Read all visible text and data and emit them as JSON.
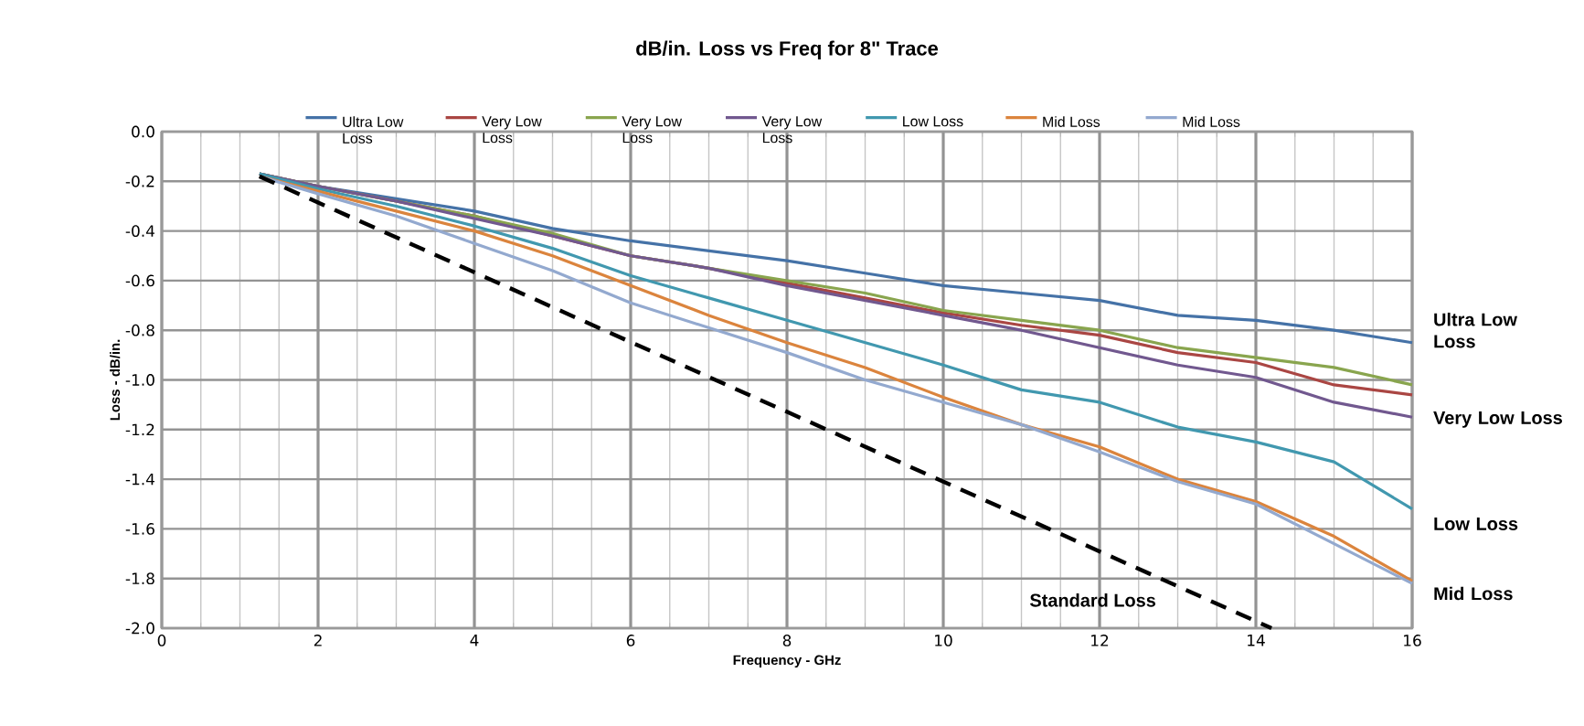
{
  "chart_data": {
    "type": "line",
    "title": "dB/in. Loss vs Freq for 8\" Trace",
    "xlabel": "Frequency - GHz",
    "ylabel": "Loss - dB/in.",
    "x": [
      1.25,
      2,
      3,
      4,
      5,
      6,
      7,
      8,
      9,
      10,
      11,
      12,
      13,
      14,
      15,
      16
    ],
    "series": [
      {
        "name": "Ultra  Low Loss",
        "color": "#4572a7",
        "values": [
          -0.17,
          -0.22,
          -0.27,
          -0.32,
          -0.39,
          -0.44,
          -0.48,
          -0.52,
          -0.57,
          -0.62,
          -0.65,
          -0.68,
          -0.74,
          -0.76,
          -0.8,
          -0.85
        ]
      },
      {
        "name": "Very Low Loss",
        "color": "#aa4643",
        "values": [
          -0.17,
          -0.22,
          -0.28,
          -0.34,
          -0.42,
          -0.5,
          -0.55,
          -0.61,
          -0.67,
          -0.73,
          -0.78,
          -0.82,
          -0.89,
          -0.93,
          -1.02,
          -1.06
        ]
      },
      {
        "name": "Very Low Loss",
        "color": "#89a54e",
        "values": [
          -0.17,
          -0.22,
          -0.28,
          -0.34,
          -0.41,
          -0.5,
          -0.55,
          -0.6,
          -0.65,
          -0.72,
          -0.76,
          -0.8,
          -0.87,
          -0.91,
          -0.95,
          -1.02
        ]
      },
      {
        "name": "Very Low Loss",
        "color": "#71588f",
        "values": [
          -0.17,
          -0.22,
          -0.28,
          -0.35,
          -0.42,
          -0.5,
          -0.55,
          -0.62,
          -0.68,
          -0.74,
          -0.8,
          -0.87,
          -0.94,
          -0.99,
          -1.09,
          -1.15
        ]
      },
      {
        "name": "Low Loss",
        "color": "#4198af",
        "values": [
          -0.17,
          -0.23,
          -0.3,
          -0.38,
          -0.47,
          -0.58,
          -0.67,
          -0.76,
          -0.85,
          -0.94,
          -1.04,
          -1.09,
          -1.19,
          -1.25,
          -1.33,
          -1.52
        ]
      },
      {
        "name": "Mid Loss",
        "color": "#db843d",
        "values": [
          -0.18,
          -0.24,
          -0.32,
          -0.4,
          -0.5,
          -0.62,
          -0.74,
          -0.85,
          -0.95,
          -1.07,
          -1.18,
          -1.27,
          -1.4,
          -1.49,
          -1.63,
          -1.81
        ]
      },
      {
        "name": "Mid Loss",
        "color": "#93a9cf",
        "values": [
          -0.18,
          -0.25,
          -0.34,
          -0.45,
          -0.56,
          -0.69,
          -0.79,
          -0.89,
          -1.0,
          -1.09,
          -1.18,
          -1.29,
          -1.41,
          -1.5,
          -1.66,
          -1.82
        ]
      },
      {
        "name": "Standard Loss",
        "color": "#000000",
        "line_style": "dashed",
        "x": [
          1.25,
          14.2
        ],
        "values": [
          -0.18,
          -2.0
        ]
      }
    ],
    "xlim": [
      0,
      16
    ],
    "xticks": [
      0,
      2,
      4,
      6,
      8,
      10,
      12,
      14,
      16
    ],
    "ylim": [
      -2.0,
      0.0
    ],
    "yticks": [
      {
        "value": 0.0,
        "label": "0.0"
      },
      -0.2,
      -0.4,
      -0.6,
      -0.8,
      {
        "value": -1.0,
        "label": "-1.0"
      },
      -1.2,
      -1.4,
      -1.6,
      -1.8,
      {
        "value": -2.0,
        "label": "-2.0"
      }
    ],
    "grid": true,
    "legend": "top",
    "line_style": "solid",
    "marker": "none",
    "annotations": [
      "Ultra  Low Loss",
      "Very Low Loss",
      "Low Loss",
      "Mid Loss"
    ]
  }
}
